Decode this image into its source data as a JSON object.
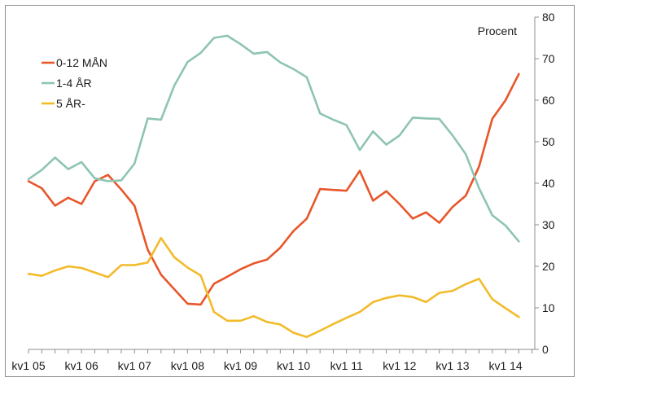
{
  "chart_data": {
    "type": "line",
    "title": "",
    "xlabel": "",
    "ylabel": "",
    "unit_label": "Procent",
    "y_axis_side": "right",
    "ylim": [
      0,
      80
    ],
    "y_ticks": [
      0,
      10,
      20,
      30,
      40,
      50,
      60,
      70,
      80
    ],
    "x_tick_labels": [
      "kv1 05",
      "kv1 06",
      "kv1 07",
      "kv1 08",
      "kv1 09",
      "kv1 10",
      "kv1 11",
      "kv1 12",
      "kv1 13",
      "kv1 14"
    ],
    "periods_per_year": 4,
    "grid": false,
    "legend_position": "top-left",
    "series": [
      {
        "name": "0-12 MÅN",
        "color": "#e8562a",
        "values": [
          40.5,
          38.8,
          34.6,
          36.5,
          35.0,
          40.5,
          42.0,
          38.5,
          34.6,
          24.0,
          18.0,
          14.5,
          11.0,
          10.8,
          15.8,
          17.5,
          19.3,
          20.7,
          21.6,
          24.5,
          28.5,
          31.5,
          38.6,
          38.4,
          38.2,
          43.0,
          35.8,
          38.1,
          35.0,
          31.5,
          33.0,
          30.5,
          34.3,
          37.0,
          44.0,
          55.5,
          60.0,
          66.3
        ]
      },
      {
        "name": "1-4 ÅR",
        "color": "#8ec4b2",
        "values": [
          41.0,
          43.2,
          46.2,
          43.4,
          45.1,
          41.2,
          40.5,
          40.7,
          44.7,
          55.6,
          55.3,
          63.5,
          69.2,
          71.4,
          75.0,
          75.5,
          73.5,
          71.2,
          71.6,
          69.1,
          67.5,
          65.5,
          56.8,
          55.3,
          54.0,
          48.0,
          52.5,
          49.3,
          51.5,
          55.8,
          55.6,
          55.5,
          51.5,
          47.0,
          38.8,
          32.3,
          29.8,
          26.0
        ]
      },
      {
        "name": "5 ÅR-",
        "color": "#f2bb2a",
        "values": [
          18.2,
          17.7,
          19.0,
          20.0,
          19.6,
          18.5,
          17.4,
          20.3,
          20.3,
          20.9,
          26.8,
          22.2,
          19.7,
          17.8,
          9.0,
          6.9,
          6.9,
          8.0,
          6.6,
          6.0,
          4.0,
          3.0,
          4.5,
          6.1,
          7.6,
          9.0,
          11.4,
          12.4,
          13.0,
          12.6,
          11.4,
          13.6,
          14.1,
          15.7,
          17.0,
          12.1,
          9.9,
          7.8
        ]
      }
    ]
  }
}
